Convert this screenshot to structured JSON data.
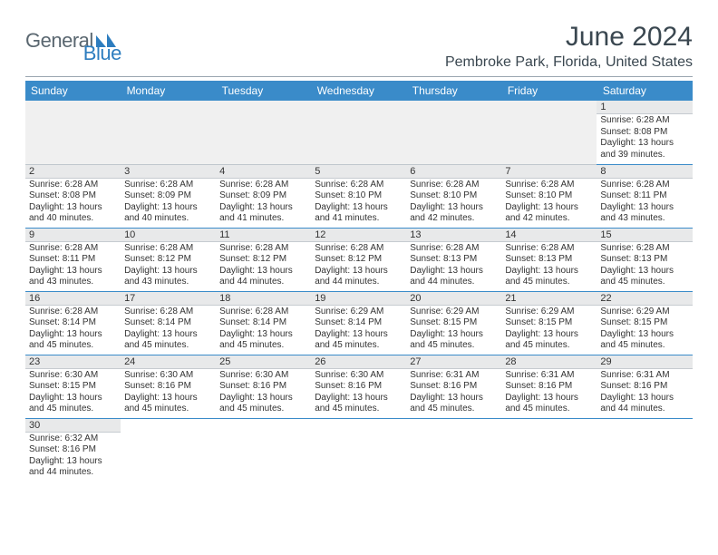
{
  "brand": {
    "word1": "General",
    "word2": "Blue"
  },
  "title": "June 2024",
  "location": "Pembroke Park, Florida, United States",
  "colors": {
    "header_bg": "#3a8bc9",
    "header_text": "#ffffff",
    "daynum_bg": "#e8e9ea",
    "row_border": "#3a8bc9",
    "logo_gray": "#5a6770",
    "logo_blue": "#2d7dbf",
    "text": "#333333",
    "page_bg": "#ffffff"
  },
  "weekdays": [
    "Sunday",
    "Monday",
    "Tuesday",
    "Wednesday",
    "Thursday",
    "Friday",
    "Saturday"
  ],
  "leading_blanks": 6,
  "days": [
    {
      "n": "1",
      "sunrise": "Sunrise: 6:28 AM",
      "sunset": "Sunset: 8:08 PM",
      "day1": "Daylight: 13 hours",
      "day2": "and 39 minutes."
    },
    {
      "n": "2",
      "sunrise": "Sunrise: 6:28 AM",
      "sunset": "Sunset: 8:08 PM",
      "day1": "Daylight: 13 hours",
      "day2": "and 40 minutes."
    },
    {
      "n": "3",
      "sunrise": "Sunrise: 6:28 AM",
      "sunset": "Sunset: 8:09 PM",
      "day1": "Daylight: 13 hours",
      "day2": "and 40 minutes."
    },
    {
      "n": "4",
      "sunrise": "Sunrise: 6:28 AM",
      "sunset": "Sunset: 8:09 PM",
      "day1": "Daylight: 13 hours",
      "day2": "and 41 minutes."
    },
    {
      "n": "5",
      "sunrise": "Sunrise: 6:28 AM",
      "sunset": "Sunset: 8:10 PM",
      "day1": "Daylight: 13 hours",
      "day2": "and 41 minutes."
    },
    {
      "n": "6",
      "sunrise": "Sunrise: 6:28 AM",
      "sunset": "Sunset: 8:10 PM",
      "day1": "Daylight: 13 hours",
      "day2": "and 42 minutes."
    },
    {
      "n": "7",
      "sunrise": "Sunrise: 6:28 AM",
      "sunset": "Sunset: 8:10 PM",
      "day1": "Daylight: 13 hours",
      "day2": "and 42 minutes."
    },
    {
      "n": "8",
      "sunrise": "Sunrise: 6:28 AM",
      "sunset": "Sunset: 8:11 PM",
      "day1": "Daylight: 13 hours",
      "day2": "and 43 minutes."
    },
    {
      "n": "9",
      "sunrise": "Sunrise: 6:28 AM",
      "sunset": "Sunset: 8:11 PM",
      "day1": "Daylight: 13 hours",
      "day2": "and 43 minutes."
    },
    {
      "n": "10",
      "sunrise": "Sunrise: 6:28 AM",
      "sunset": "Sunset: 8:12 PM",
      "day1": "Daylight: 13 hours",
      "day2": "and 43 minutes."
    },
    {
      "n": "11",
      "sunrise": "Sunrise: 6:28 AM",
      "sunset": "Sunset: 8:12 PM",
      "day1": "Daylight: 13 hours",
      "day2": "and 44 minutes."
    },
    {
      "n": "12",
      "sunrise": "Sunrise: 6:28 AM",
      "sunset": "Sunset: 8:12 PM",
      "day1": "Daylight: 13 hours",
      "day2": "and 44 minutes."
    },
    {
      "n": "13",
      "sunrise": "Sunrise: 6:28 AM",
      "sunset": "Sunset: 8:13 PM",
      "day1": "Daylight: 13 hours",
      "day2": "and 44 minutes."
    },
    {
      "n": "14",
      "sunrise": "Sunrise: 6:28 AM",
      "sunset": "Sunset: 8:13 PM",
      "day1": "Daylight: 13 hours",
      "day2": "and 45 minutes."
    },
    {
      "n": "15",
      "sunrise": "Sunrise: 6:28 AM",
      "sunset": "Sunset: 8:13 PM",
      "day1": "Daylight: 13 hours",
      "day2": "and 45 minutes."
    },
    {
      "n": "16",
      "sunrise": "Sunrise: 6:28 AM",
      "sunset": "Sunset: 8:14 PM",
      "day1": "Daylight: 13 hours",
      "day2": "and 45 minutes."
    },
    {
      "n": "17",
      "sunrise": "Sunrise: 6:28 AM",
      "sunset": "Sunset: 8:14 PM",
      "day1": "Daylight: 13 hours",
      "day2": "and 45 minutes."
    },
    {
      "n": "18",
      "sunrise": "Sunrise: 6:28 AM",
      "sunset": "Sunset: 8:14 PM",
      "day1": "Daylight: 13 hours",
      "day2": "and 45 minutes."
    },
    {
      "n": "19",
      "sunrise": "Sunrise: 6:29 AM",
      "sunset": "Sunset: 8:14 PM",
      "day1": "Daylight: 13 hours",
      "day2": "and 45 minutes."
    },
    {
      "n": "20",
      "sunrise": "Sunrise: 6:29 AM",
      "sunset": "Sunset: 8:15 PM",
      "day1": "Daylight: 13 hours",
      "day2": "and 45 minutes."
    },
    {
      "n": "21",
      "sunrise": "Sunrise: 6:29 AM",
      "sunset": "Sunset: 8:15 PM",
      "day1": "Daylight: 13 hours",
      "day2": "and 45 minutes."
    },
    {
      "n": "22",
      "sunrise": "Sunrise: 6:29 AM",
      "sunset": "Sunset: 8:15 PM",
      "day1": "Daylight: 13 hours",
      "day2": "and 45 minutes."
    },
    {
      "n": "23",
      "sunrise": "Sunrise: 6:30 AM",
      "sunset": "Sunset: 8:15 PM",
      "day1": "Daylight: 13 hours",
      "day2": "and 45 minutes."
    },
    {
      "n": "24",
      "sunrise": "Sunrise: 6:30 AM",
      "sunset": "Sunset: 8:16 PM",
      "day1": "Daylight: 13 hours",
      "day2": "and 45 minutes."
    },
    {
      "n": "25",
      "sunrise": "Sunrise: 6:30 AM",
      "sunset": "Sunset: 8:16 PM",
      "day1": "Daylight: 13 hours",
      "day2": "and 45 minutes."
    },
    {
      "n": "26",
      "sunrise": "Sunrise: 6:30 AM",
      "sunset": "Sunset: 8:16 PM",
      "day1": "Daylight: 13 hours",
      "day2": "and 45 minutes."
    },
    {
      "n": "27",
      "sunrise": "Sunrise: 6:31 AM",
      "sunset": "Sunset: 8:16 PM",
      "day1": "Daylight: 13 hours",
      "day2": "and 45 minutes."
    },
    {
      "n": "28",
      "sunrise": "Sunrise: 6:31 AM",
      "sunset": "Sunset: 8:16 PM",
      "day1": "Daylight: 13 hours",
      "day2": "and 45 minutes."
    },
    {
      "n": "29",
      "sunrise": "Sunrise: 6:31 AM",
      "sunset": "Sunset: 8:16 PM",
      "day1": "Daylight: 13 hours",
      "day2": "and 44 minutes."
    },
    {
      "n": "30",
      "sunrise": "Sunrise: 6:32 AM",
      "sunset": "Sunset: 8:16 PM",
      "day1": "Daylight: 13 hours",
      "day2": "and 44 minutes."
    }
  ]
}
